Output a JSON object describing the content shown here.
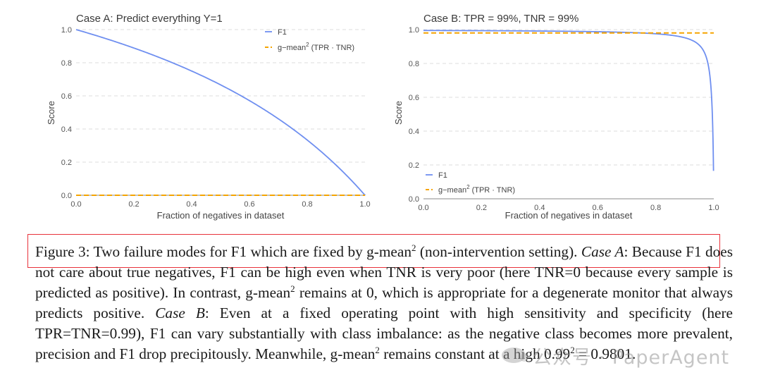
{
  "chart_data": [
    {
      "type": "line",
      "title": "Case A: Predict everything Y=1",
      "xlabel": "Fraction of negatives in dataset",
      "ylabel": "Score",
      "xlim": [
        0,
        1
      ],
      "ylim": [
        0,
        1
      ],
      "xticks": [
        "0.0",
        "0.2",
        "0.4",
        "0.6",
        "0.8",
        "1.0"
      ],
      "yticks": [
        "0.0",
        "0.2",
        "0.4",
        "0.6",
        "0.8",
        "1.0"
      ],
      "legend_position": "top-right",
      "grid": "horizontal dashed",
      "series": [
        {
          "name": "F1",
          "style": "solid",
          "color": "#6f8ff0",
          "formula": "2(1-x)/(2-x)",
          "tpr": 1,
          "tnr": 0
        },
        {
          "name": "g-mean² (TPR · TNR)",
          "style": "dashed",
          "color": "#f5a400",
          "value": 0
        }
      ]
    },
    {
      "type": "line",
      "title": "Case B: TPR = 99%, TNR = 99%",
      "xlabel": "Fraction of negatives in dataset",
      "ylabel": "Score",
      "xlim": [
        0,
        1
      ],
      "ylim": [
        0,
        1
      ],
      "xticks": [
        "0.0",
        "0.2",
        "0.4",
        "0.6",
        "0.8",
        "1.0"
      ],
      "yticks": [
        "0.0",
        "0.2",
        "0.4",
        "0.6",
        "0.8",
        "1.0"
      ],
      "legend_position": "bottom-left",
      "grid": "horizontal dashed",
      "series": [
        {
          "name": "F1",
          "style": "solid",
          "color": "#6f8ff0",
          "formula": "2·TPR(1-x)/((1-x)(1+TPR) + x(1-TNR))",
          "tpr": 0.99,
          "tnr": 0.99,
          "x_end": 0.999
        },
        {
          "name": "g-mean² (TPR · TNR)",
          "style": "dashed",
          "color": "#f5a400",
          "value": 0.9801
        }
      ]
    }
  ],
  "legend": {
    "f1_label": "F1",
    "gmean_label": "g−mean",
    "gmean_sup": "2",
    "gmean_suffix": " (TPR · TNR)"
  },
  "caption": {
    "figure_label": "Figure 3:",
    "sentence_1a": " Two failure modes for F1 which are fixed by g-mean",
    "sup": "2",
    "sentence_1b": " (non-intervention setting). ",
    "case_a_label": "Case A",
    "case_a_text_1": ": Because F1 does not care about true negatives, F1 can be high even when TNR is very poor (here TNR=0 because every sample is predicted as positive). In contrast, g-mean",
    "case_a_text_2": " remains at 0, which is appropriate for a degenerate monitor that always predicts positive. ",
    "case_b_label": "Case B",
    "case_b_text_1": ": Even at a fixed operating point with high sensitivity and specificity (here TPR=TNR=0.99), F1 can vary substantially with class imbalance: as the negative class becomes more prevalent, precision and F1 drop precipitously. Meanwhile, g-mean",
    "case_b_text_2": " remains constant at a high 0.99",
    "case_b_text_3": " = 0.9801."
  },
  "watermark": {
    "text": "公众号 · PaperAgent"
  }
}
